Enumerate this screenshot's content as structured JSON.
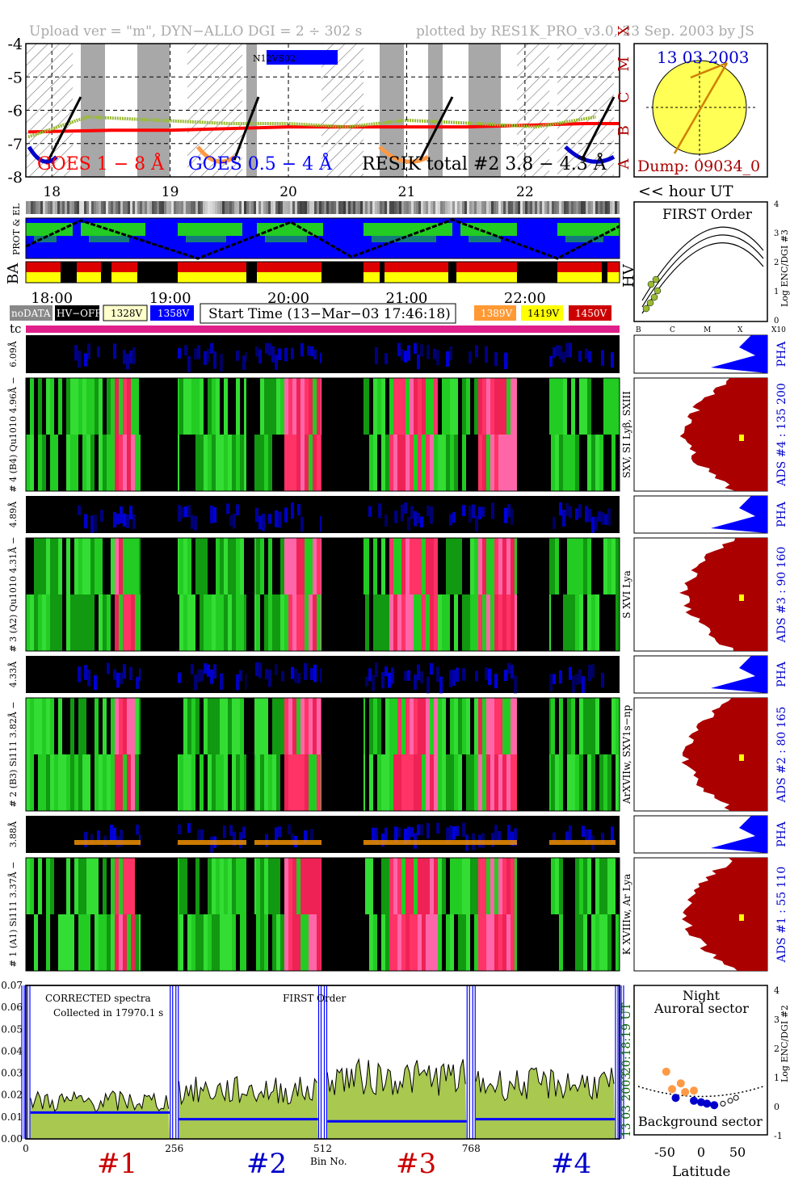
{
  "header": {
    "left": "Upload ver = \"m\", DYN−ALLO DGI =   2 ÷ 302 s",
    "right": "plotted by RES1K_PRO_v3.0, 23 Sep. 2003 by JS"
  },
  "goes_panel": {
    "y_ticks": [
      "-4",
      "-5",
      "-6",
      "-7",
      "-8"
    ],
    "class_labels": [
      "X",
      "M",
      "C",
      "B",
      "A"
    ],
    "legend_goes18": "GOES 1 − 8 Å",
    "legend_goes054": "GOES 0.5 − 4 Å",
    "legend_resik": "RESIK total #2  3.8 − 4.3 Å",
    "noaa_label": "N12VS02"
  },
  "hours_top": [
    "18",
    "19",
    "20",
    "21",
    "22"
  ],
  "hour_ut_label": "<< hour UT",
  "times": [
    "18:00",
    "19:00",
    "20:00",
    "21:00",
    "22:00"
  ],
  "sun": {
    "date": "13 03 2003",
    "dump": "Dump: 09034_0"
  },
  "first_order": {
    "title": "FIRST Order",
    "y_ticks": [
      "4",
      "3",
      "2",
      "1",
      "0"
    ],
    "x_ticks": [
      "B",
      "C",
      "M",
      "X",
      "X10"
    ],
    "y_label": "Log ENC/DGI #3"
  },
  "left_labels": {
    "prot_el": "PROT & EL",
    "ba": "BA",
    "hv": "HV",
    "tc": "tc"
  },
  "legend_boxes": {
    "nodata": "noDATA",
    "hvoff": "HV−OFF",
    "v1328": "1328V",
    "v1358": "1358V",
    "v1389": "1389V",
    "v1419": "1419V",
    "v1450": "1450V"
  },
  "start_time": "Start Time (13−Mar−03 17:46:18)",
  "channels": [
    {
      "pha_label": "6.09Å",
      "main_label": "# 4 (B4) Qu1010 4.96Å −",
      "line_label": "SXV, SI Lyβ, SXIII",
      "ads_label": "ADS #4 :  135 200"
    },
    {
      "pha_label": "4.89Å",
      "main_label": "# 3 (A2) Qu1010 4.31Å −",
      "line_label": "S XVI Lya",
      "ads_label": "ADS #3 :   90 160"
    },
    {
      "pha_label": "4.33Å",
      "main_label": "# 2 (B3) Si111 3.82Å −",
      "line_label": "ArXVIIw, SXV1s−np",
      "ads_label": "ADS #2 :   80 165"
    },
    {
      "pha_label": "3.88Å",
      "main_label": "# 1 (A1) Si111 3.37Å −",
      "line_label": "K XVIIIw, Ar Lya",
      "ads_label": "ADS #1 :   55 110"
    }
  ],
  "pha_text": "PHA",
  "spectrum": {
    "y_ticks": [
      "0.07",
      "0.06",
      "0.05",
      "0.04",
      "0.03",
      "0.02",
      "0.01",
      "0.00"
    ],
    "x_ticks": [
      "0",
      "256",
      "512",
      "768"
    ],
    "text1": "CORRECTED spectra",
    "text2": "Collected in 17970.1 s",
    "text3": "FIRST Order",
    "time_label": "20:18:19 UT",
    "date_label": "13 03 2003",
    "xlabel": "Bin No.",
    "ranges": [
      "#1",
      "#2",
      "#3",
      "#4"
    ]
  },
  "latitude": {
    "title1": "Night",
    "title2": "Auroral sector",
    "bottom": "Background sector",
    "xlabel": "Latitude",
    "x_ticks": [
      "-50",
      "0",
      "50"
    ],
    "y_ticks": [
      "4",
      "3",
      "2",
      "1",
      "0",
      "-1"
    ],
    "y_label": "Log ENC/DGI #2"
  },
  "chart_data": {
    "type": "line",
    "series": [
      {
        "name": "GOES 1 − 8 Å",
        "x": [
          17.8,
          18.5,
          19.0,
          19.5,
          20.0,
          20.5,
          21.0,
          21.5,
          22.0,
          22.5,
          22.8
        ],
        "values": [
          -6.65,
          -6.6,
          -6.6,
          -6.55,
          -6.5,
          -6.5,
          -6.5,
          -6.5,
          -6.45,
          -6.4,
          -6.4
        ]
      },
      {
        "name": "RESIK total #2  3.8 − 4.3 Å",
        "x": [
          17.8,
          18.3,
          18.9,
          19.5,
          20.0,
          20.5,
          21.0,
          21.6,
          22.1,
          22.6
        ],
        "values": [
          -6.8,
          -6.2,
          -6.3,
          -6.4,
          -6.4,
          -6.5,
          -6.3,
          -6.4,
          -6.5,
          -6.2
        ]
      }
    ],
    "spectrum": {
      "x_range": [
        0,
        1024
      ],
      "ylim": [
        0,
        0.07
      ],
      "segments": [
        {
          "name": "#1",
          "bins": [
            0,
            256
          ],
          "level": 0.017,
          "background": 0.012
        },
        {
          "name": "#2",
          "bins": [
            256,
            512
          ],
          "level": 0.022,
          "background": 0.009
        },
        {
          "name": "#3",
          "bins": [
            512,
            768
          ],
          "level": 0.028,
          "background": 0.008
        },
        {
          "name": "#4",
          "bins": [
            768,
            1024
          ],
          "level": 0.025,
          "background": 0.009
        }
      ]
    },
    "latitude_points": {
      "auroral": [
        [
          -48,
          1.2
        ],
        [
          -40,
          0.6
        ],
        [
          -28,
          0.8
        ],
        [
          -22,
          0.5
        ],
        [
          -10,
          0.55
        ]
      ],
      "background": [
        [
          -35,
          0.3
        ],
        [
          -10,
          0.2
        ],
        [
          0,
          0.15
        ],
        [
          8,
          0.1
        ],
        [
          18,
          0.05
        ]
      ],
      "open": [
        [
          30,
          0.1
        ],
        [
          40,
          0.2
        ],
        [
          48,
          0.3
        ]
      ]
    }
  }
}
